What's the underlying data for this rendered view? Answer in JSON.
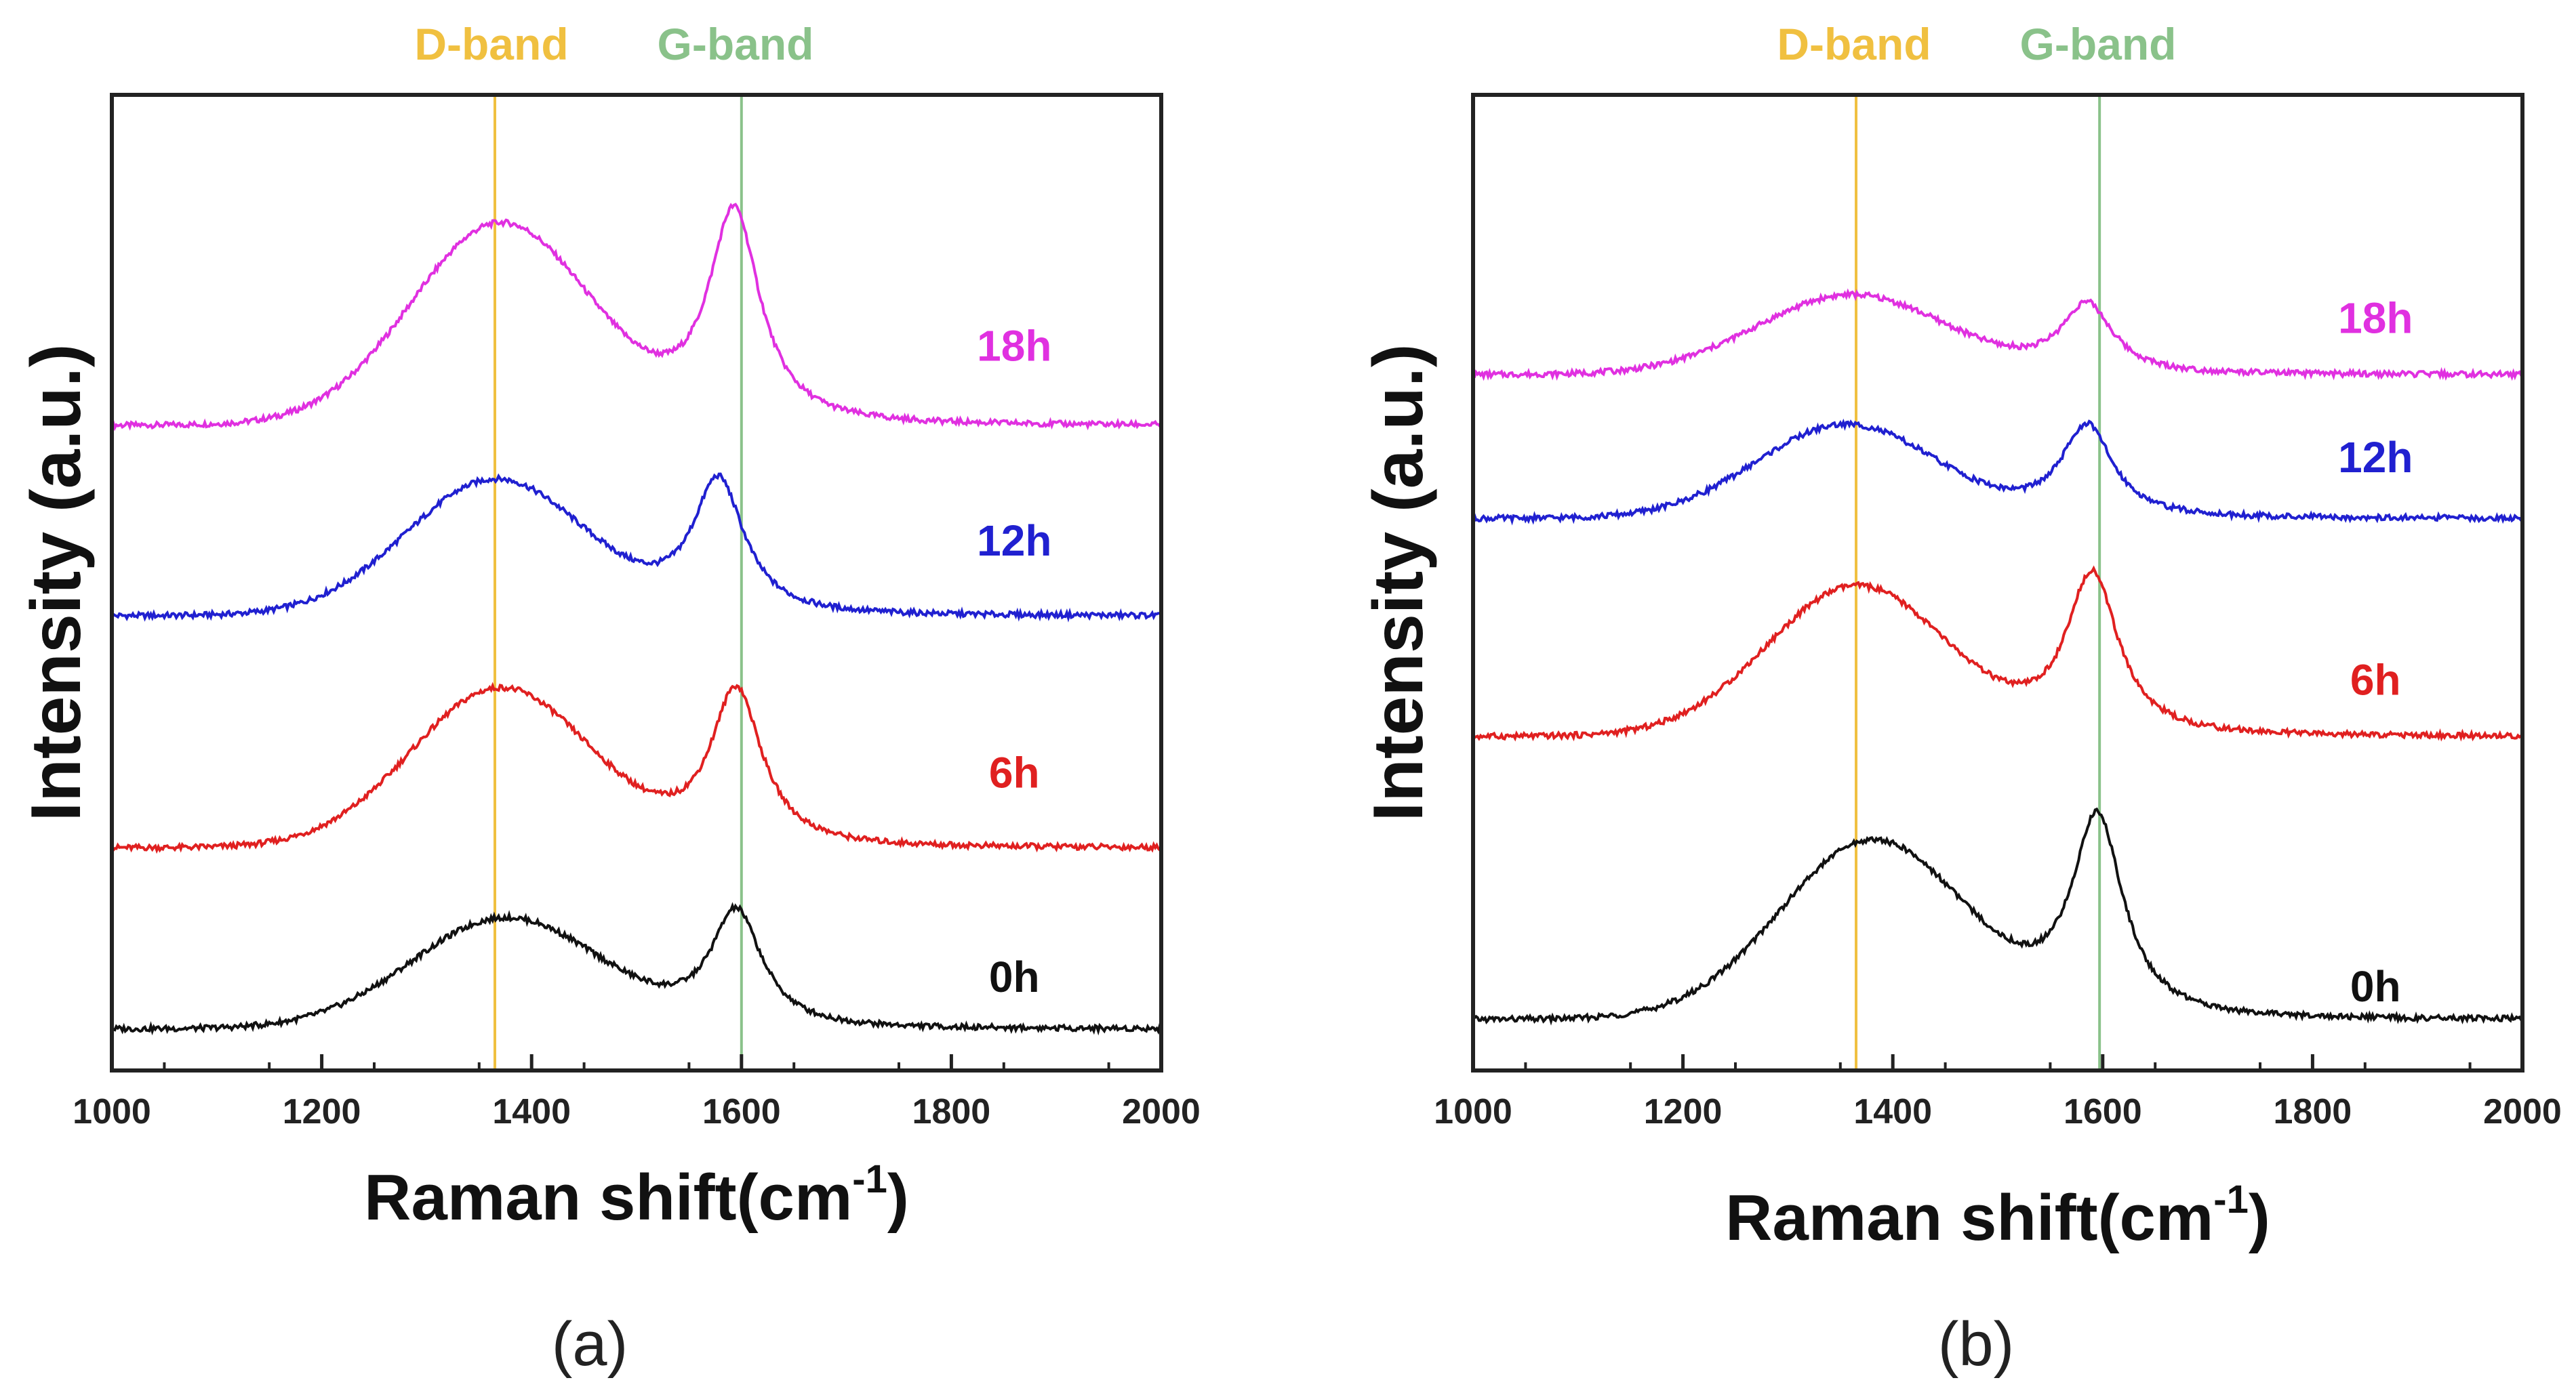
{
  "colors": {
    "d_band": "#f0c040",
    "g_band": "#8ac28a",
    "18h": "#e030e0",
    "12h": "#2020d0",
    "6h": "#e02020",
    "0h": "#111111",
    "axis": "#222222"
  },
  "chart_data": [
    {
      "id": "a",
      "type": "line",
      "caption": "(a)",
      "xlabel": "Raman shift(cm",
      "xlabel_sup": "-1",
      "xlabel_close": ")",
      "ylabel": "Intensity (a.u.)",
      "xlim": [
        1000,
        2000
      ],
      "xticks": [
        "1000",
        "1200",
        "1400",
        "1600",
        "1800",
        "2000"
      ],
      "ylim": [
        0,
        1
      ],
      "band_lines": [
        {
          "name": "D-band",
          "x": 1365,
          "color_key": "d_band"
        },
        {
          "name": "G-band",
          "x": 1600,
          "color_key": "g_band"
        }
      ],
      "series": [
        {
          "name": "18h",
          "baseline": 0.68,
          "bg_left": 0.0,
          "bg_right": 0.0,
          "d_center": 1370,
          "d_height": 0.215,
          "d_width": 85,
          "g_center": 1593,
          "g_height": 0.23,
          "g_width": 30,
          "label_y": 0.75
        },
        {
          "name": "12h",
          "baseline": 0.475,
          "bg_left": 0.0,
          "bg_right": 0.0,
          "d_center": 1365,
          "d_height": 0.145,
          "d_width": 85,
          "g_center": 1578,
          "g_height": 0.145,
          "g_width": 30,
          "label_y": 0.54
        },
        {
          "name": "6h",
          "baseline": 0.225,
          "bg_left": 0.0,
          "bg_right": 0.0,
          "d_center": 1370,
          "d_height": 0.17,
          "d_width": 85,
          "g_center": 1595,
          "g_height": 0.17,
          "g_width": 30,
          "label_y": 0.29
        },
        {
          "name": "0h",
          "baseline": 0.03,
          "bg_left": 0.0,
          "bg_right": 0.0,
          "d_center": 1375,
          "d_height": 0.118,
          "d_width": 90,
          "g_center": 1595,
          "g_height": 0.125,
          "g_width": 30,
          "label_y": 0.07
        }
      ]
    },
    {
      "id": "b",
      "type": "line",
      "caption": "(b)",
      "xlabel": "Raman shift(cm",
      "xlabel_sup": "-1",
      "xlabel_close": ")",
      "ylabel": "Intensity (a.u.)",
      "xlim": [
        1000,
        2000
      ],
      "xticks": [
        "1000",
        "1200",
        "1400",
        "1600",
        "1800",
        "2000"
      ],
      "ylim": [
        0,
        1
      ],
      "band_lines": [
        {
          "name": "D-band",
          "x": 1365,
          "color_key": "d_band"
        },
        {
          "name": "G-band",
          "x": 1597,
          "color_key": "g_band"
        }
      ],
      "series": [
        {
          "name": "18h",
          "baseline": 0.735,
          "bg_left": 0.0,
          "bg_right": 0.0,
          "d_center": 1360,
          "d_height": 0.085,
          "d_width": 90,
          "g_center": 1585,
          "g_height": 0.075,
          "g_width": 30,
          "label_y": 0.78
        },
        {
          "name": "12h",
          "baseline": 0.58,
          "bg_left": 0.0,
          "bg_right": 0.0,
          "d_center": 1355,
          "d_height": 0.1,
          "d_width": 85,
          "g_center": 1585,
          "g_height": 0.1,
          "g_width": 30,
          "label_y": 0.63
        },
        {
          "name": "6h",
          "baseline": 0.345,
          "bg_left": 0.0,
          "bg_right": 0.0,
          "d_center": 1365,
          "d_height": 0.16,
          "d_width": 85,
          "g_center": 1590,
          "g_height": 0.175,
          "g_width": 30,
          "label_y": 0.39
        },
        {
          "name": "0h",
          "baseline": 0.04,
          "bg_left": 0.0,
          "bg_right": 0.0,
          "d_center": 1380,
          "d_height": 0.19,
          "d_width": 88,
          "g_center": 1595,
          "g_height": 0.215,
          "g_width": 30,
          "label_y": 0.06
        }
      ]
    }
  ]
}
